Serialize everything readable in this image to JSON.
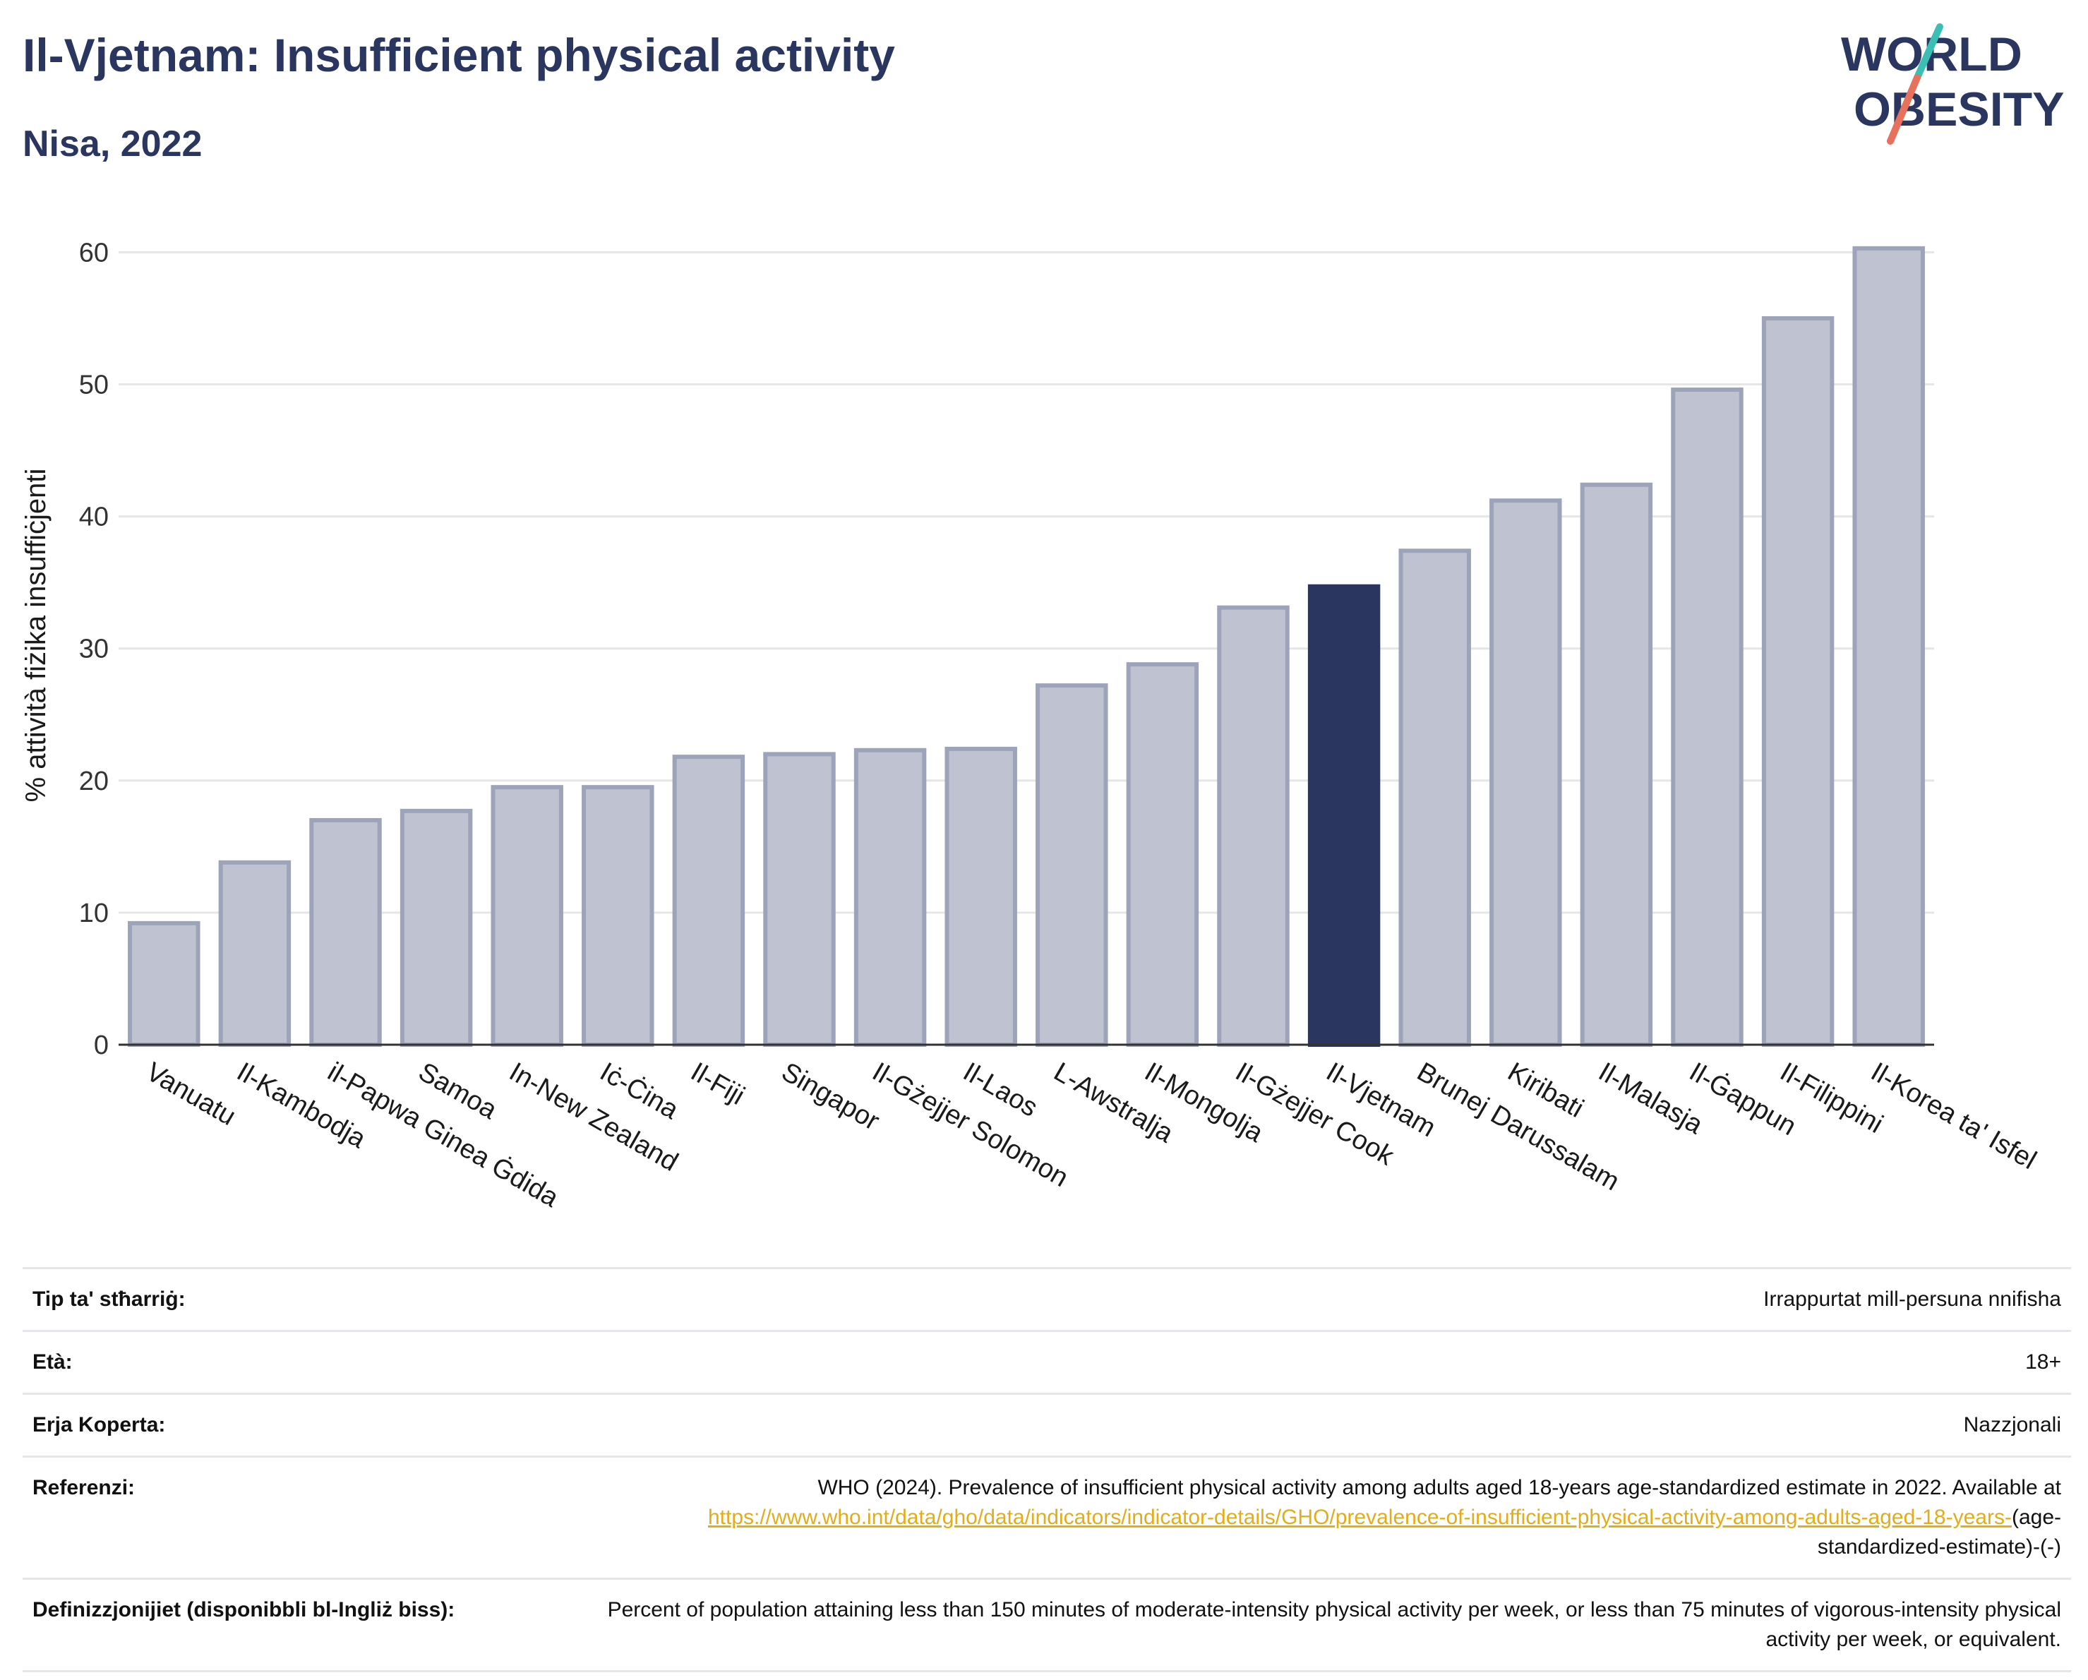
{
  "header": {
    "title": "Il-Vjetnam: Insufficient physical activity",
    "subtitle": "Nisa, 2022"
  },
  "logo": {
    "line1": "WORLD",
    "line2": "OBESITY",
    "colors": {
      "text": "#2a3560",
      "slash_teal": "#3bbfb5",
      "slash_coral": "#e8715d"
    }
  },
  "colors": {
    "bar_default_fill": "#bfc3d1",
    "bar_default_stroke": "#9da3b9",
    "bar_highlight": "#2a3560",
    "grid": "#e6e6e6",
    "axis": "#333333",
    "link": "#e2ac1a"
  },
  "chart_data": {
    "type": "bar",
    "title": "Il-Vjetnam: Insufficient physical activity",
    "subtitle": "Nisa, 2022",
    "xlabel": "",
    "ylabel": "% attività fiżika insuffiċjenti",
    "ylim": [
      0,
      62
    ],
    "yticks": [
      0,
      10,
      20,
      30,
      40,
      50,
      60
    ],
    "grid": true,
    "highlight": "Il-Vjetnam",
    "categories": [
      "Vanuatu",
      "Il-Kambodja",
      "il-Papwa Ginea Ġdida",
      "Samoa",
      "In-New Zealand",
      "Iċ-Ċina",
      "Il-Fiji",
      "Singapor",
      "Il-Gżejjer Solomon",
      "Il-Laos",
      "L-Awstralja",
      "Il-Mongolja",
      "Il-Gżejjer Cook",
      "Il-Vjetnam",
      "Brunej Darussalam",
      "Kiribati",
      "Il-Malasja",
      "Il-Ġappun",
      "Il-Filippini",
      "Il-Korea ta' Isfel"
    ],
    "values": [
      9.2,
      13.8,
      17.0,
      17.7,
      19.5,
      19.5,
      21.8,
      22.0,
      22.3,
      22.4,
      27.2,
      28.8,
      33.1,
      34.7,
      37.4,
      41.2,
      42.4,
      49.6,
      55.0,
      60.3
    ]
  },
  "meta": {
    "rows": [
      {
        "label": "Tip ta' stħarriġ:",
        "value": "Irrappurtat mill-persuna nnifisha"
      },
      {
        "label": "Età:",
        "value": "18+"
      },
      {
        "label": "Erja Koperta:",
        "value": "Nazzjonali"
      },
      {
        "label": "Referenzi:",
        "value": "WHO (2024). Prevalence of insufficient physical activity among adults aged 18-years age-standardized estimate in 2022. Available at",
        "link": "https://www.who.int/data/gho/data/indicators/indicator-details/GHO/prevalence-of-insufficient-physical-activity-among-adults-aged-18-years-",
        "suffix": "(age-standardized-estimate)-(-)"
      },
      {
        "label": "Definizzjonijiet (disponibbli bl-Ingliż biss):",
        "value": "Percent of population attaining less than 150 minutes of moderate-intensity physical activity per week, or less than 75 minutes of vigorous-intensity physical activity per week, or equivalent."
      }
    ]
  }
}
